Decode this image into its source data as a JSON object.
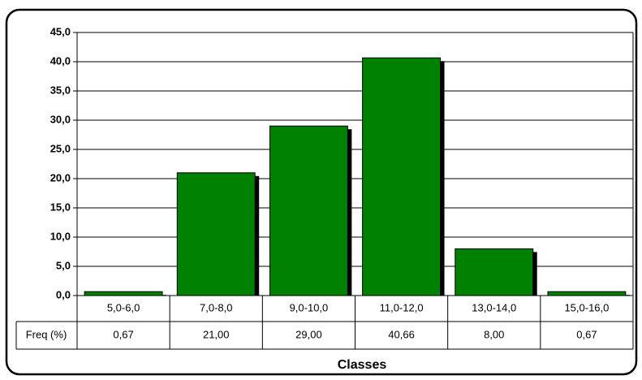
{
  "chart_data": {
    "type": "bar",
    "x_label": "Classes",
    "categories": [
      "5,0-6,0",
      "7,0-8,0",
      "9,0-10,0",
      "11,0-12,0",
      "13,0-14,0",
      "15,0-16,0"
    ],
    "series": [
      {
        "name": "Freq (%)",
        "color": "#008000",
        "values": [
          0.67,
          21,
          29,
          40.66,
          8,
          0.67
        ],
        "value_labels": [
          "0,67",
          "21,00",
          "29,00",
          "40,66",
          "8,00",
          "0,67"
        ]
      }
    ],
    "ylim": [
      0,
      45
    ],
    "yticks": [
      {
        "value": 0,
        "label": "0,0"
      },
      {
        "value": 5,
        "label": "5,0"
      },
      {
        "value": 10,
        "label": "10,0"
      },
      {
        "value": 15,
        "label": "15,0"
      },
      {
        "value": 20,
        "label": "20,0"
      },
      {
        "value": 25,
        "label": "25,0"
      },
      {
        "value": 30,
        "label": "30,0"
      },
      {
        "value": 35,
        "label": "35,0"
      },
      {
        "value": 40,
        "label": "40,0"
      },
      {
        "value": 45,
        "label": "45,0"
      }
    ],
    "grid": true
  }
}
